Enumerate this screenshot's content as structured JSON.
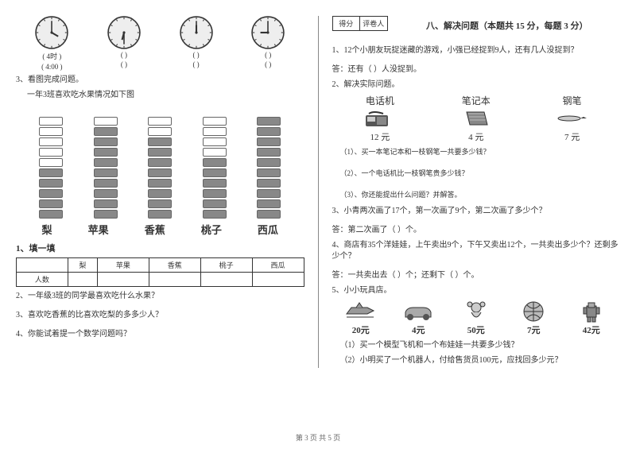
{
  "left": {
    "clocks": [
      {
        "hour": 4,
        "minute": 0,
        "label1": "( 4时 )",
        "label2": "( 4:00 )"
      },
      {
        "hour": 6,
        "minute": 30,
        "label1": "(        )",
        "label2": "(        )"
      },
      {
        "hour": 12,
        "minute": 0,
        "label1": "(        )",
        "label2": "(        )"
      },
      {
        "hour": 9,
        "minute": 0,
        "label1": "(        )",
        "label2": "(        )"
      }
    ],
    "q3": "3、看图完成问题。",
    "q3_sub": "一年3班喜欢吃水果情况如下图",
    "fruits": [
      "梨",
      "苹果",
      "香蕉",
      "桃子",
      "西瓜"
    ],
    "bars": {
      "total_rows": 10,
      "filled": [
        5,
        9,
        8,
        6,
        10
      ]
    },
    "fill_title": "1、填一填",
    "table_row_label": "人数",
    "sub2": "2、一年级3班的同学最喜欢吃什么水果？",
    "sub3": "3、喜欢吃香蕉的比喜欢吃梨的多多少人？",
    "sub4": "4、你能试着提一个数学问题吗？"
  },
  "right": {
    "score_labels": [
      "得分",
      "评卷人"
    ],
    "section8": "八、解决问题（本题共 15 分，每题 3 分）",
    "q1": "1、12个小朋友玩捉迷藏的游戏，小强已经捉到9人，还有几人没捉到？",
    "q1_ans": "答：还有（   ）人没捉到。",
    "q2": "2、解决实际问题。",
    "items": [
      {
        "name": "电话机",
        "price": "12 元"
      },
      {
        "name": "笔记本",
        "price": "4 元"
      },
      {
        "name": "钢笔",
        "price": "7 元"
      }
    ],
    "q2_1": "（1）、买一本笔记本和一枝钢笔一共要多少钱？",
    "q2_2": "（2）、一个电话机比一枝钢笔贵多少钱？",
    "q2_3": "（3）、你还能提出什么问题？并解答。",
    "q3": "3、小青两次画了17个，第一次画了9个，第二次画了多少个？",
    "q3_ans": "答：第二次画了（  ）个。",
    "q4": "4、商店有35个洋娃娃，上午卖出9个，下午又卖出12个，一共卖出多少个？还剩多少个？",
    "q4_ans": "答：一共卖出去（   ）个；还剩下（   ）个。",
    "q5": "5、小小玩具店。",
    "toys": [
      {
        "label": "20元"
      },
      {
        "label": "4元"
      },
      {
        "label": "50元"
      },
      {
        "label": "7元"
      },
      {
        "label": "42元"
      }
    ],
    "q5_1": "（1）买一个模型飞机和一个布娃娃一共要多少钱？",
    "q5_2": "（2）小明买了一个机器人，付给售货员100元，应找回多少元？"
  },
  "footer": "第 3 页 共 5 页"
}
